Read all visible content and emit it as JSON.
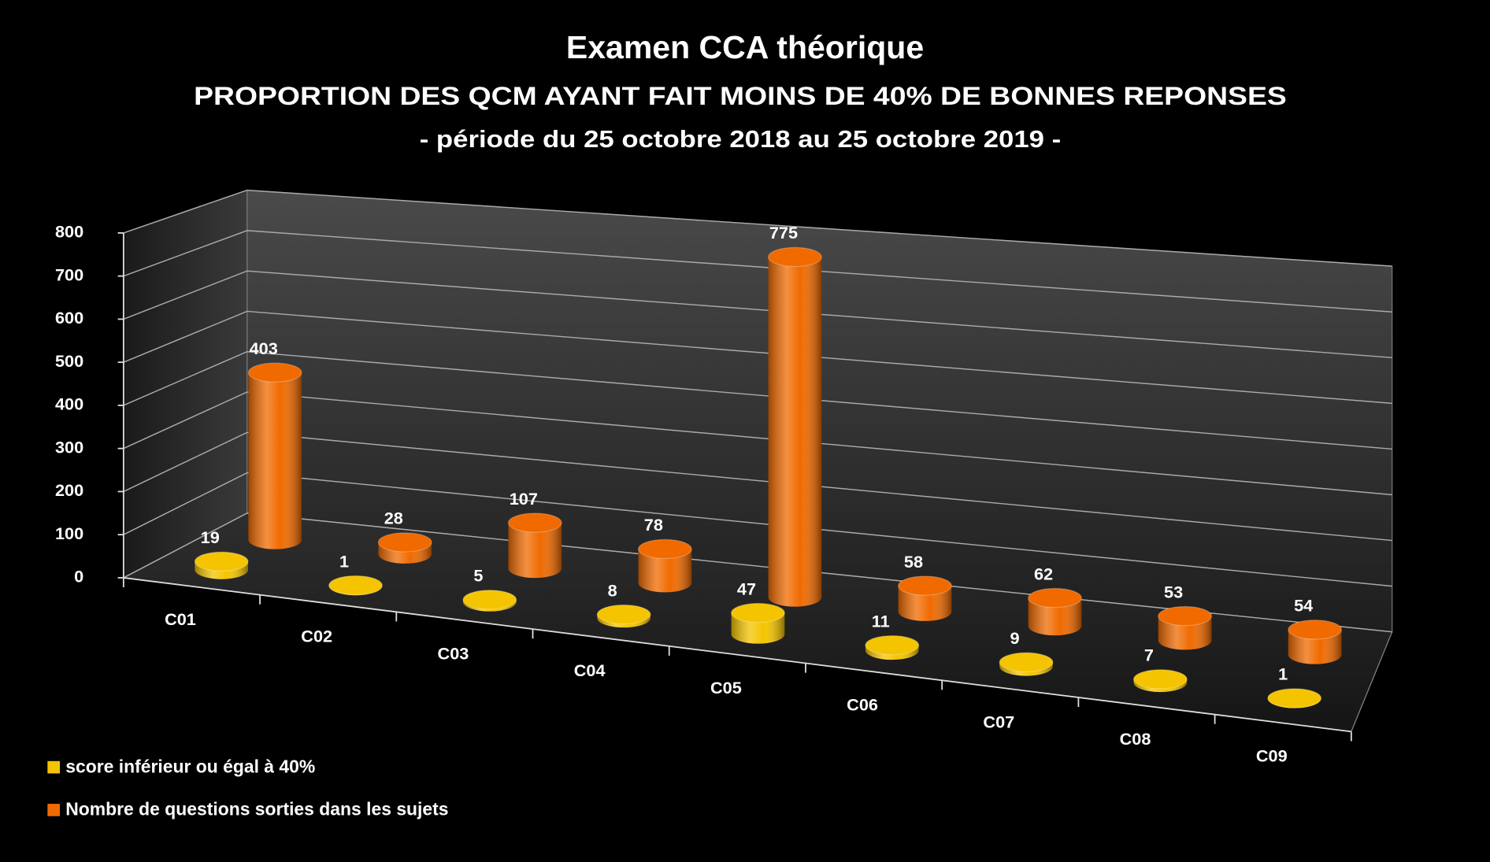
{
  "chart_data": {
    "type": "bar3d",
    "title": "Examen CCA théorique",
    "subtitle": "PROPORTION DES QCM AYANT FAIT MOINS DE 40% DE BONNES REPONSES",
    "subtitle2": "- période du 25 octobre 2018 au 25 octobre 2019 -",
    "categories": [
      "C01",
      "C02",
      "C03",
      "C04",
      "C05",
      "C06",
      "C07",
      "C08",
      "C09"
    ],
    "series": [
      {
        "name": "score inférieur ou égal à 40%",
        "color": "#f5c400",
        "values": [
          19,
          1,
          5,
          8,
          47,
          11,
          9,
          7,
          1
        ]
      },
      {
        "name": "Nombre de questions sorties dans les sujets",
        "color": "#f06a00",
        "values": [
          403,
          28,
          107,
          78,
          775,
          58,
          62,
          53,
          54
        ]
      }
    ],
    "ylim": [
      0,
      800
    ],
    "yticks": [
      0,
      100,
      200,
      300,
      400,
      500,
      600,
      700,
      800
    ],
    "grid": true,
    "legend": "bottom-left"
  }
}
